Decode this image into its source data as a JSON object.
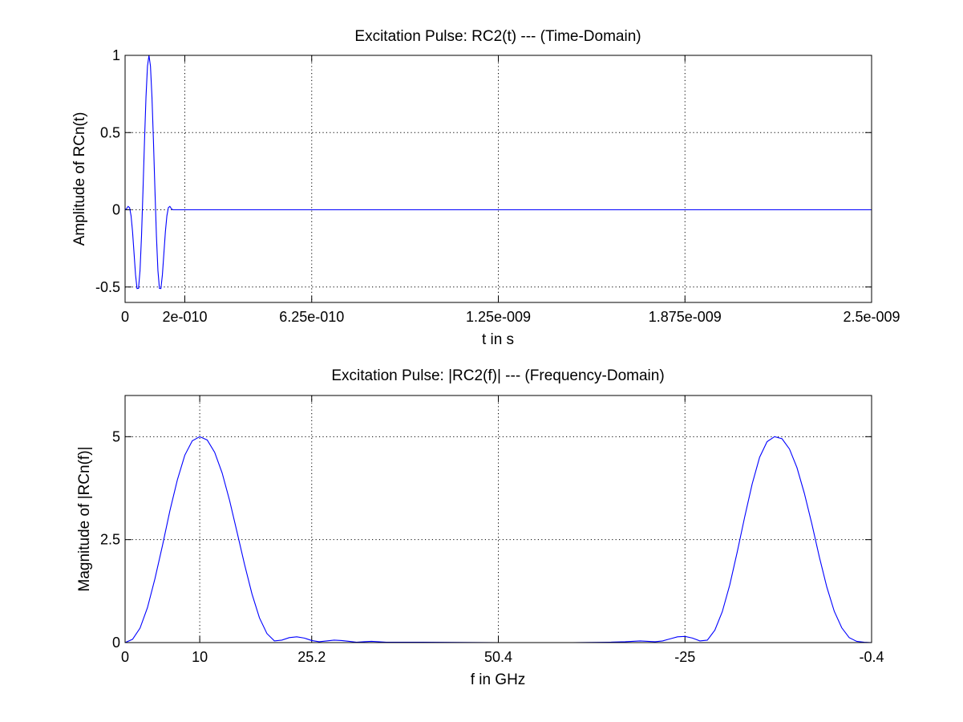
{
  "series_color": "#0000ff",
  "chart_data": [
    {
      "type": "line",
      "title": "Excitation Pulse: RC2(t) --- (Time-Domain)",
      "xlabel": "t in s",
      "ylabel": "Amplitude of RCn(t)",
      "xlim": [
        0,
        2.5e-09
      ],
      "ylim": [
        -0.6,
        1
      ],
      "grid": true,
      "x_ticks": [
        0,
        2e-10,
        6.25e-10,
        1.25e-09,
        1.875e-09,
        2.5e-09
      ],
      "x_tick_labels": [
        "0",
        "2e-010",
        "6.25e-010",
        "1.25e-009",
        "1.875e-009",
        "2.5e-009"
      ],
      "y_ticks": [
        -0.5,
        0,
        0.5,
        1
      ],
      "y_tick_labels": [
        "-0.5",
        "0",
        "0.5",
        "1"
      ],
      "series": [
        {
          "x": [
            0,
            5e-12,
            1e-11,
            1.5e-11,
            2e-11,
            2.5e-11,
            3e-11,
            3.5e-11,
            4e-11,
            4.5e-11,
            5e-11,
            5.5e-11,
            6e-11,
            6.5e-11,
            7e-11,
            7.5e-11,
            8e-11,
            8.5e-11,
            9e-11,
            9.5e-11,
            1e-10,
            1.05e-10,
            1.1e-10,
            1.15e-10,
            1.2e-10,
            1.25e-10,
            1.3e-10,
            1.35e-10,
            1.4e-10,
            1.45e-10,
            1.5e-10,
            1.55e-10,
            1.6e-10,
            1.65e-10,
            1.7e-10,
            1.75e-10,
            1.8e-10,
            1.85e-10,
            1.9e-10,
            1.95e-10,
            2e-10,
            2.5e-09
          ],
          "y": [
            0,
            0.007,
            0.022,
            0.014,
            -0.039,
            -0.142,
            -0.281,
            -0.42,
            -0.51,
            -0.509,
            -0.394,
            -0.171,
            0.127,
            0.445,
            0.73,
            0.93,
            1.0,
            0.93,
            0.73,
            0.445,
            0.127,
            -0.171,
            -0.394,
            -0.509,
            -0.51,
            -0.42,
            -0.281,
            -0.142,
            -0.039,
            0.014,
            0.022,
            0.007,
            0,
            0,
            0,
            0,
            0,
            0,
            0,
            0,
            0,
            0
          ]
        }
      ]
    },
    {
      "type": "line",
      "title": "Excitation Pulse: |RC2(f)| --- (Frequency-Domain)",
      "xlabel": "f in GHz",
      "ylabel": "Magnitude of |RCn(f)|",
      "xlim": [
        0,
        100
      ],
      "ylim": [
        0,
        6
      ],
      "grid": true,
      "x_ticks": [
        0,
        10,
        25,
        50,
        75,
        100
      ],
      "x_tick_labels": [
        "0",
        "10",
        "25.2",
        "50.4",
        "-25",
        "-0.4"
      ],
      "y_ticks": [
        0,
        2.5,
        5
      ],
      "y_tick_labels": [
        "0",
        "2.5",
        "5"
      ],
      "series": [
        {
          "x": [
            0,
            1,
            2,
            3,
            4,
            5,
            6,
            7,
            8,
            9,
            10,
            11,
            12,
            13,
            14,
            15,
            16,
            17,
            18,
            19,
            20,
            21,
            22,
            23,
            24,
            25,
            26,
            27,
            28,
            29,
            30,
            31,
            32,
            33,
            35,
            40,
            50,
            60,
            65,
            67,
            68,
            69,
            70,
            71,
            72,
            73,
            74,
            75,
            76,
            77,
            78,
            79,
            80,
            81,
            82,
            83,
            84,
            85,
            86,
            87,
            88,
            89,
            90,
            91,
            92,
            93,
            94,
            95,
            96,
            97,
            98,
            99,
            100
          ],
          "y": [
            0,
            0.08,
            0.35,
            0.85,
            1.55,
            2.35,
            3.2,
            3.95,
            4.55,
            4.9,
            5.0,
            4.92,
            4.62,
            4.12,
            3.45,
            2.68,
            1.9,
            1.18,
            0.6,
            0.22,
            0.04,
            0.06,
            0.12,
            0.14,
            0.11,
            0.05,
            0.02,
            0.04,
            0.06,
            0.05,
            0.03,
            0.01,
            0.02,
            0.03,
            0.01,
            0.01,
            0,
            0,
            0.01,
            0.02,
            0.03,
            0.04,
            0.03,
            0.02,
            0.04,
            0.09,
            0.14,
            0.15,
            0.11,
            0.04,
            0.06,
            0.3,
            0.75,
            1.4,
            2.2,
            3.05,
            3.85,
            4.5,
            4.88,
            5.0,
            4.95,
            4.7,
            4.25,
            3.62,
            2.88,
            2.08,
            1.35,
            0.76,
            0.36,
            0.12,
            0.03,
            0.01,
            0
          ]
        }
      ]
    }
  ]
}
